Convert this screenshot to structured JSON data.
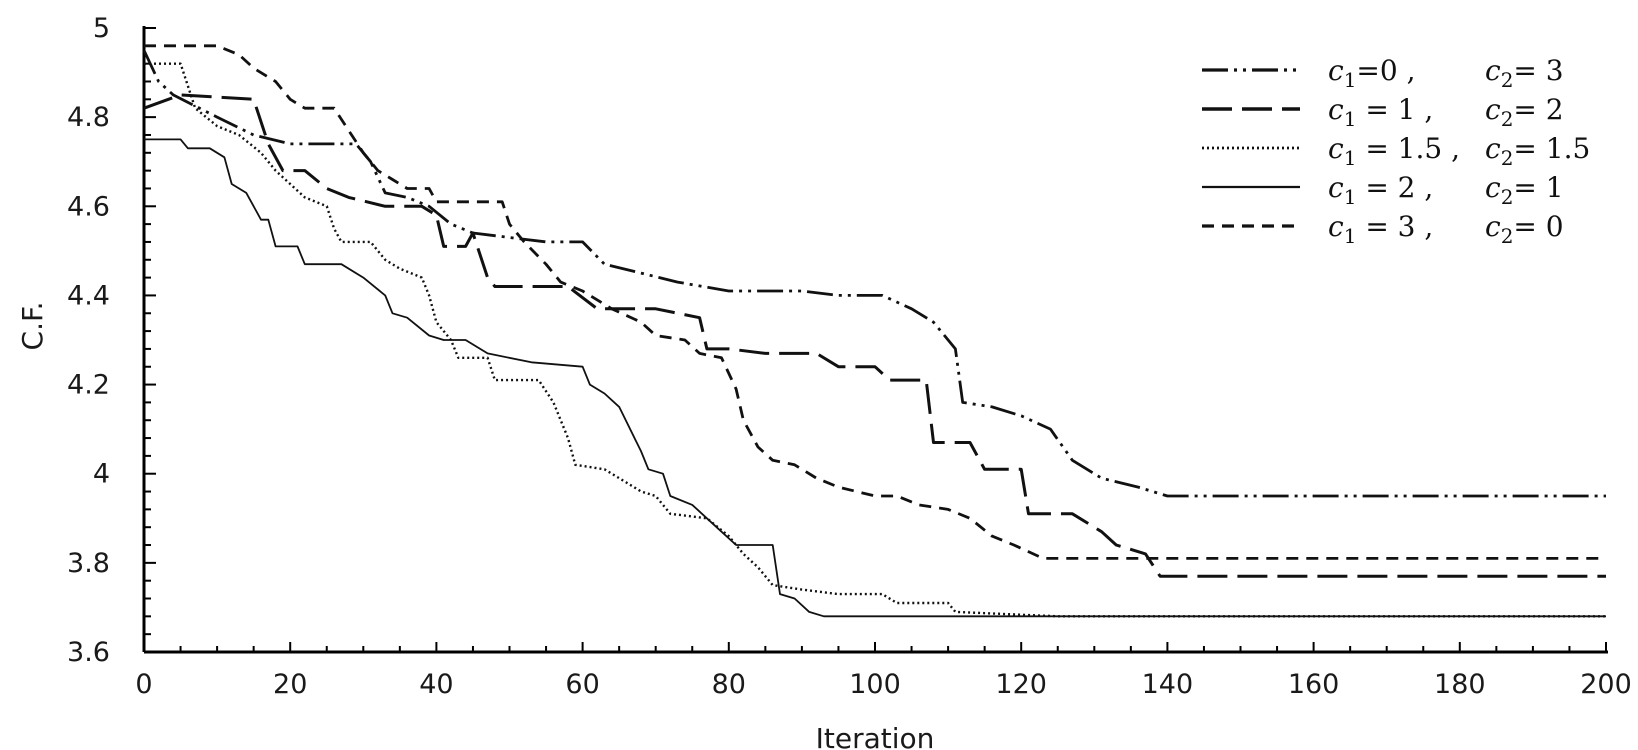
{
  "chart_data": {
    "type": "line",
    "title": "",
    "xlabel": "Iteration",
    "ylabel": "C.F.",
    "xlim": [
      0,
      200
    ],
    "ylim": [
      3.6,
      5
    ],
    "x_ticks": [
      "0",
      "20",
      "40",
      "60",
      "80",
      "100",
      "120",
      "140",
      "160",
      "180",
      "200"
    ],
    "y_ticks": [
      "3.6",
      "3.8",
      "4",
      "4.2",
      "4.4",
      "4.6",
      "4.8",
      "5"
    ],
    "legend_position": "top-right",
    "grid": false,
    "series": [
      {
        "id": "s1",
        "dash": "dash-dot-dot",
        "legend": {
          "a": "c",
          "a_sub": "1",
          "a_rest": "=0 ,",
          "b": "c",
          "b_sub": "2",
          "b_rest": "= 3"
        },
        "points": [
          [
            0,
            4.95
          ],
          [
            2,
            4.88
          ],
          [
            4,
            4.85
          ],
          [
            10,
            4.8
          ],
          [
            15,
            4.76
          ],
          [
            20,
            4.74
          ],
          [
            29,
            4.74
          ],
          [
            31,
            4.7
          ],
          [
            33,
            4.63
          ],
          [
            36,
            4.62
          ],
          [
            39,
            4.6
          ],
          [
            42,
            4.56
          ],
          [
            45,
            4.54
          ],
          [
            50,
            4.53
          ],
          [
            55,
            4.52
          ],
          [
            60,
            4.52
          ],
          [
            63,
            4.47
          ],
          [
            68,
            4.45
          ],
          [
            73,
            4.43
          ],
          [
            80,
            4.41
          ],
          [
            90,
            4.41
          ],
          [
            95,
            4.4
          ],
          [
            101,
            4.4
          ],
          [
            105,
            4.37
          ],
          [
            108,
            4.34
          ],
          [
            111,
            4.28
          ],
          [
            112,
            4.16
          ],
          [
            116,
            4.15
          ],
          [
            120,
            4.13
          ],
          [
            124,
            4.1
          ],
          [
            127,
            4.03
          ],
          [
            131,
            3.99
          ],
          [
            136,
            3.97
          ],
          [
            140,
            3.95
          ],
          [
            200,
            3.95
          ]
        ]
      },
      {
        "id": "s2",
        "dash": "long-dash",
        "legend": {
          "a": "c",
          "a_sub": "1",
          "a_rest": " = 1 ,",
          "b": "c",
          "b_sub": "2",
          "b_rest": "= 2"
        },
        "points": [
          [
            0,
            4.82
          ],
          [
            5,
            4.85
          ],
          [
            15,
            4.84
          ],
          [
            17,
            4.74
          ],
          [
            19,
            4.68
          ],
          [
            22,
            4.68
          ],
          [
            25,
            4.64
          ],
          [
            28,
            4.62
          ],
          [
            33,
            4.6
          ],
          [
            38,
            4.6
          ],
          [
            40,
            4.58
          ],
          [
            41,
            4.51
          ],
          [
            44,
            4.51
          ],
          [
            45,
            4.54
          ],
          [
            47,
            4.44
          ],
          [
            48,
            4.42
          ],
          [
            58,
            4.42
          ],
          [
            62,
            4.37
          ],
          [
            70,
            4.37
          ],
          [
            76,
            4.35
          ],
          [
            77,
            4.28
          ],
          [
            80,
            4.28
          ],
          [
            85,
            4.27
          ],
          [
            92,
            4.27
          ],
          [
            95,
            4.24
          ],
          [
            100,
            4.24
          ],
          [
            102,
            4.21
          ],
          [
            107,
            4.21
          ],
          [
            108,
            4.07
          ],
          [
            113,
            4.07
          ],
          [
            115,
            4.01
          ],
          [
            120,
            4.01
          ],
          [
            121,
            3.91
          ],
          [
            127,
            3.91
          ],
          [
            131,
            3.87
          ],
          [
            133,
            3.84
          ],
          [
            137,
            3.82
          ],
          [
            139,
            3.77
          ],
          [
            200,
            3.77
          ]
        ]
      },
      {
        "id": "s3",
        "dash": "dotted",
        "legend": {
          "a": "c",
          "a_sub": "1",
          "a_rest": " = 1.5 ,",
          "b": "c",
          "b_sub": "2",
          "b_rest": "= 1.5"
        },
        "points": [
          [
            0,
            4.92
          ],
          [
            5,
            4.92
          ],
          [
            7,
            4.82
          ],
          [
            10,
            4.78
          ],
          [
            13,
            4.76
          ],
          [
            16,
            4.72
          ],
          [
            18,
            4.68
          ],
          [
            20,
            4.65
          ],
          [
            22,
            4.62
          ],
          [
            25,
            4.6
          ],
          [
            26,
            4.55
          ],
          [
            27,
            4.52
          ],
          [
            31,
            4.52
          ],
          [
            33,
            4.48
          ],
          [
            35,
            4.46
          ],
          [
            38,
            4.44
          ],
          [
            39,
            4.4
          ],
          [
            40,
            4.34
          ],
          [
            42,
            4.3
          ],
          [
            43,
            4.26
          ],
          [
            47,
            4.26
          ],
          [
            48,
            4.21
          ],
          [
            54,
            4.21
          ],
          [
            56,
            4.16
          ],
          [
            58,
            4.08
          ],
          [
            59,
            4.02
          ],
          [
            63,
            4.01
          ],
          [
            66,
            3.98
          ],
          [
            68,
            3.96
          ],
          [
            70,
            3.95
          ],
          [
            72,
            3.91
          ],
          [
            77,
            3.9
          ],
          [
            80,
            3.86
          ],
          [
            82,
            3.82
          ],
          [
            84,
            3.79
          ],
          [
            86,
            3.75
          ],
          [
            90,
            3.74
          ],
          [
            95,
            3.73
          ],
          [
            101,
            3.73
          ],
          [
            103,
            3.71
          ],
          [
            110,
            3.71
          ],
          [
            111,
            3.69
          ],
          [
            125,
            3.68
          ],
          [
            200,
            3.68
          ]
        ]
      },
      {
        "id": "s4",
        "dash": "solid",
        "legend": {
          "a": "c",
          "a_sub": "1",
          "a_rest": " = 2 ,",
          "b": "c",
          "b_sub": "2",
          "b_rest": "= 1"
        },
        "points": [
          [
            0,
            4.75
          ],
          [
            5,
            4.75
          ],
          [
            6,
            4.73
          ],
          [
            9,
            4.73
          ],
          [
            11,
            4.71
          ],
          [
            12,
            4.65
          ],
          [
            14,
            4.63
          ],
          [
            16,
            4.57
          ],
          [
            17,
            4.57
          ],
          [
            18,
            4.51
          ],
          [
            21,
            4.51
          ],
          [
            22,
            4.47
          ],
          [
            27,
            4.47
          ],
          [
            30,
            4.44
          ],
          [
            33,
            4.4
          ],
          [
            34,
            4.36
          ],
          [
            36,
            4.35
          ],
          [
            39,
            4.31
          ],
          [
            41,
            4.3
          ],
          [
            44,
            4.3
          ],
          [
            47,
            4.27
          ],
          [
            53,
            4.25
          ],
          [
            60,
            4.24
          ],
          [
            61,
            4.2
          ],
          [
            63,
            4.18
          ],
          [
            65,
            4.15
          ],
          [
            68,
            4.05
          ],
          [
            69,
            4.01
          ],
          [
            71,
            4.0
          ],
          [
            72,
            3.95
          ],
          [
            75,
            3.93
          ],
          [
            77,
            3.9
          ],
          [
            79,
            3.87
          ],
          [
            81,
            3.84
          ],
          [
            86,
            3.84
          ],
          [
            87,
            3.73
          ],
          [
            89,
            3.72
          ],
          [
            91,
            3.69
          ],
          [
            93,
            3.68
          ],
          [
            200,
            3.68
          ]
        ]
      },
      {
        "id": "s5",
        "dash": "short-dash",
        "legend": {
          "a": "c",
          "a_sub": "1",
          "a_rest": " = 3 ,",
          "b": "c",
          "b_sub": "2",
          "b_rest": "= 0"
        },
        "points": [
          [
            0,
            4.96
          ],
          [
            10,
            4.96
          ],
          [
            13,
            4.94
          ],
          [
            15,
            4.91
          ],
          [
            18,
            4.88
          ],
          [
            20,
            4.84
          ],
          [
            22,
            4.82
          ],
          [
            26,
            4.82
          ],
          [
            28,
            4.77
          ],
          [
            30,
            4.72
          ],
          [
            32,
            4.68
          ],
          [
            34,
            4.66
          ],
          [
            36,
            4.64
          ],
          [
            39,
            4.64
          ],
          [
            40,
            4.61
          ],
          [
            44,
            4.61
          ],
          [
            49,
            4.61
          ],
          [
            50,
            4.56
          ],
          [
            52,
            4.52
          ],
          [
            55,
            4.47
          ],
          [
            57,
            4.43
          ],
          [
            60,
            4.41
          ],
          [
            64,
            4.37
          ],
          [
            68,
            4.34
          ],
          [
            70,
            4.31
          ],
          [
            74,
            4.3
          ],
          [
            76,
            4.27
          ],
          [
            79,
            4.26
          ],
          [
            81,
            4.19
          ],
          [
            82,
            4.12
          ],
          [
            84,
            4.06
          ],
          [
            86,
            4.03
          ],
          [
            89,
            4.02
          ],
          [
            92,
            3.99
          ],
          [
            95,
            3.97
          ],
          [
            100,
            3.95
          ],
          [
            103,
            3.95
          ],
          [
            106,
            3.93
          ],
          [
            110,
            3.92
          ],
          [
            113,
            3.9
          ],
          [
            116,
            3.86
          ],
          [
            119,
            3.84
          ],
          [
            123,
            3.81
          ],
          [
            200,
            3.81
          ]
        ]
      }
    ]
  }
}
